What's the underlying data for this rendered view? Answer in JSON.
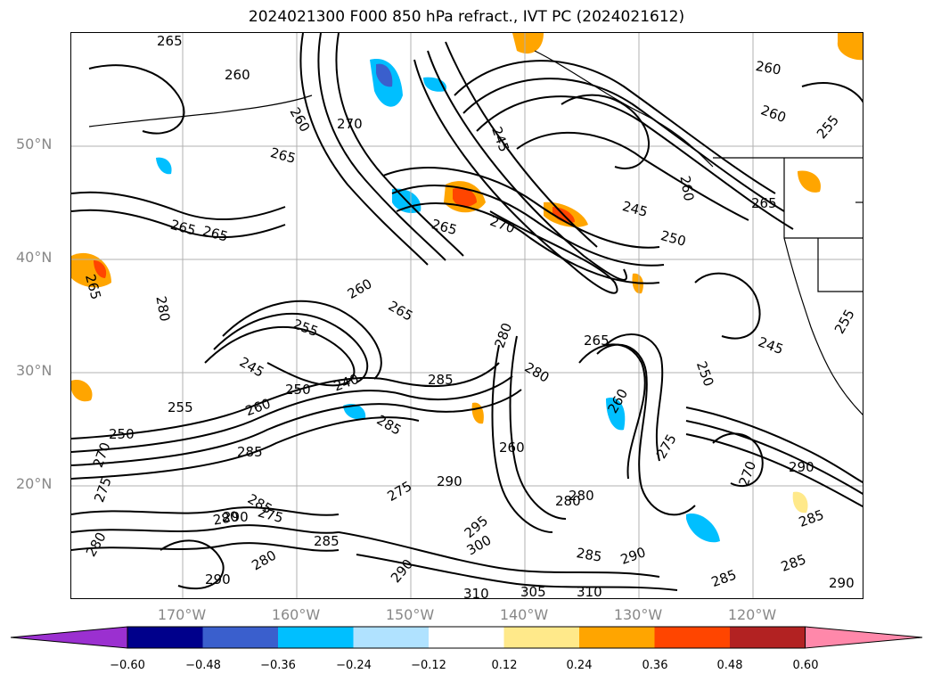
{
  "title": "2024021300 F000 850 hPa refract., IVT PC (2024021612)",
  "lat_ticks": [
    "50°N",
    "40°N",
    "30°N",
    "20°N"
  ],
  "lon_ticks": [
    "170°W",
    "160°W",
    "150°W",
    "140°W",
    "130°W",
    "120°W"
  ],
  "colorbar": {
    "ticks": [
      "−0.60",
      "−0.48",
      "−0.36",
      "−0.24",
      "−0.12",
      "0.12",
      "0.24",
      "0.36",
      "0.48",
      "0.60"
    ],
    "colors": [
      "#9b30d0",
      "#00008b",
      "#3a5fcd",
      "#00bfff",
      "#b0e2ff",
      "#ffffff",
      "#ffe98a",
      "#ffa500",
      "#ff4500",
      "#b22222",
      "#ff88aa"
    ]
  },
  "contour_labels": [
    "265",
    "260",
    "260",
    "270",
    "265",
    "245",
    "260",
    "260",
    "255",
    "265",
    "260",
    "265",
    "270",
    "265",
    "245",
    "250",
    "265",
    "260",
    "265",
    "280",
    "265",
    "255",
    "245",
    "240",
    "250",
    "255",
    "260",
    "285",
    "280",
    "280",
    "265",
    "260",
    "250",
    "245",
    "255",
    "250",
    "285",
    "285",
    "270",
    "260",
    "275",
    "270",
    "290",
    "285",
    "275",
    "275",
    "290",
    "280",
    "285",
    "280",
    "290",
    "295",
    "300",
    "280",
    "285",
    "290",
    "290",
    "280",
    "310",
    "305",
    "310",
    "285",
    "290",
    "285",
    "275",
    "285",
    "290",
    "280"
  ]
}
